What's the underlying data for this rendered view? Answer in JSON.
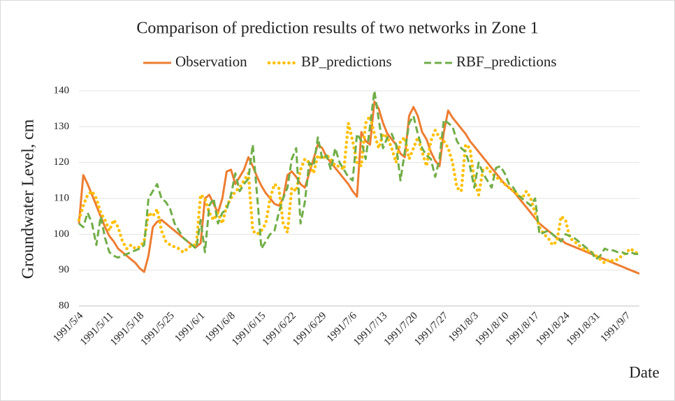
{
  "chart_data": {
    "type": "line",
    "title": "Comparison of prediction results of two networks in Zone 1",
    "y_label": "Groundwater Level, cm",
    "x_label": "Date",
    "categories": [
      "1991/5/4",
      null,
      null,
      null,
      null,
      null,
      null,
      "1991/5/11",
      null,
      null,
      null,
      null,
      null,
      null,
      "1991/5/18",
      null,
      null,
      null,
      null,
      null,
      null,
      "1991/5/25",
      null,
      null,
      null,
      null,
      null,
      null,
      "1991/6/1",
      null,
      null,
      null,
      null,
      null,
      null,
      "1991/6/8",
      null,
      null,
      null,
      null,
      null,
      null,
      "1991/6/15",
      null,
      null,
      null,
      null,
      null,
      null,
      "1991/6/22",
      null,
      null,
      null,
      null,
      null,
      null,
      "1991/6/29",
      null,
      null,
      null,
      null,
      null,
      null,
      "1991/7/6",
      null,
      null,
      null,
      null,
      null,
      null,
      "1991/7/13",
      null,
      null,
      null,
      null,
      null,
      null,
      "1991/7/20",
      null,
      null,
      null,
      null,
      null,
      null,
      "1991/7/27",
      null,
      null,
      null,
      null,
      null,
      null,
      "1991/8/3",
      null,
      null,
      null,
      null,
      null,
      null,
      "1991/8/10",
      null,
      null,
      null,
      null,
      null,
      null,
      "1991/8/17",
      null,
      null,
      null,
      null,
      null,
      null,
      "1991/8/24",
      null,
      null,
      null,
      null,
      null,
      null,
      "1991/8/31",
      null,
      null,
      null,
      null,
      null,
      null,
      "1991/9/7",
      null,
      null,
      null
    ],
    "series": [
      {
        "name": "Observation",
        "color": "#ed7d31",
        "style": "solid",
        "values": [
          103,
          116.5,
          114,
          111,
          108,
          105,
          102,
          99.5,
          98,
          96,
          95,
          94,
          93,
          92,
          90.5,
          89.5,
          94,
          102,
          103.5,
          104,
          103,
          102,
          101,
          100,
          99,
          98,
          97,
          96.5,
          97.5,
          110,
          111,
          108.5,
          106,
          110,
          117.5,
          118,
          114,
          116,
          118,
          121.5,
          119,
          116,
          113.5,
          111.5,
          110,
          108.5,
          108,
          110,
          116.5,
          117.5,
          116,
          114,
          113,
          117,
          121,
          125,
          124,
          121.5,
          120,
          118.5,
          117,
          115.5,
          114,
          112,
          110.5,
          128.5,
          126,
          125,
          137,
          135,
          131,
          128,
          126.5,
          125,
          122.5,
          121.5,
          133,
          135.5,
          133,
          128.5,
          126.5,
          123,
          120.5,
          119,
          128.5,
          134.5,
          132.5,
          131,
          129.5,
          128,
          126,
          124.5,
          123,
          121.5,
          120,
          118.5,
          117,
          115.5,
          114,
          113,
          112,
          110.5,
          109,
          107.5,
          106,
          104.5,
          103,
          102,
          101,
          100,
          99,
          98.5,
          97.5,
          97,
          96.5,
          96,
          95.5,
          95,
          94.5,
          94,
          93.5,
          93,
          92.5,
          92,
          91.5,
          91,
          90.5,
          90,
          89.5,
          89
        ]
      },
      {
        "name": "BP_predictions",
        "color": "#ffc000",
        "style": "dotted",
        "values": [
          104,
          108,
          111,
          112,
          110,
          106,
          104,
          101,
          104,
          102,
          98,
          96,
          97,
          96,
          96.5,
          98,
          106,
          105,
          107,
          101,
          98,
          97,
          96.5,
          96,
          95,
          96,
          97,
          97,
          111,
          110,
          106,
          104,
          106,
          103,
          108,
          110,
          112,
          113,
          115,
          117,
          101,
          100,
          101,
          103,
          110,
          114,
          113,
          103,
          100.5,
          113,
          112,
          118,
          121,
          120,
          117,
          122,
          121,
          122,
          121,
          119,
          119,
          118,
          131,
          126,
          120,
          119,
          131,
          133,
          128,
          124,
          128,
          127,
          124,
          120,
          126,
          127,
          121,
          124,
          127,
          123,
          119,
          126,
          129,
          127,
          126,
          124,
          120,
          113,
          112,
          125,
          124,
          115,
          111,
          118,
          118.5,
          117,
          116,
          115,
          114,
          113,
          112,
          111,
          110,
          112,
          110,
          106,
          102,
          100,
          99,
          97,
          98,
          105,
          104,
          99,
          98,
          97,
          96,
          95.5,
          95,
          94,
          93,
          92,
          93,
          92.5,
          93,
          94,
          95,
          96,
          95,
          94.5
        ]
      },
      {
        "name": "RBF_predictions",
        "color": "#70ad47",
        "style": "dashed",
        "values": [
          103,
          102,
          106,
          103,
          97,
          105,
          99,
          95,
          94,
          93.5,
          94,
          94.5,
          95,
          95.5,
          96,
          97,
          110,
          112,
          114,
          110,
          109,
          107,
          103,
          101,
          99,
          98,
          97,
          96,
          104,
          95,
          108,
          110,
          103,
          106,
          107,
          111,
          117,
          112,
          114,
          115.5,
          125,
          111,
          96,
          98,
          100,
          101,
          106,
          110,
          113,
          121,
          124,
          103,
          109,
          120,
          119,
          127,
          121,
          122,
          118,
          124,
          120,
          118,
          116,
          115,
          128,
          126,
          121,
          130,
          140,
          132,
          124,
          127,
          128,
          125,
          115,
          123,
          131,
          133,
          128,
          124,
          122,
          121,
          116,
          121,
          132,
          131,
          130,
          126,
          124,
          123,
          119,
          113,
          120,
          117,
          115,
          113,
          118.5,
          119,
          117,
          114,
          113,
          111,
          110,
          109,
          108,
          110,
          100,
          100.5,
          101,
          100,
          99,
          98,
          100,
          99.5,
          99,
          98,
          97,
          96,
          95,
          93,
          94,
          96,
          95.5,
          95.5,
          95,
          95,
          94.5,
          95,
          94.5,
          94.5
        ]
      }
    ],
    "ylim": [
      80,
      140
    ],
    "yticks": [
      80,
      90,
      100,
      110,
      120,
      130,
      140
    ],
    "grid": true,
    "legend": "top"
  }
}
